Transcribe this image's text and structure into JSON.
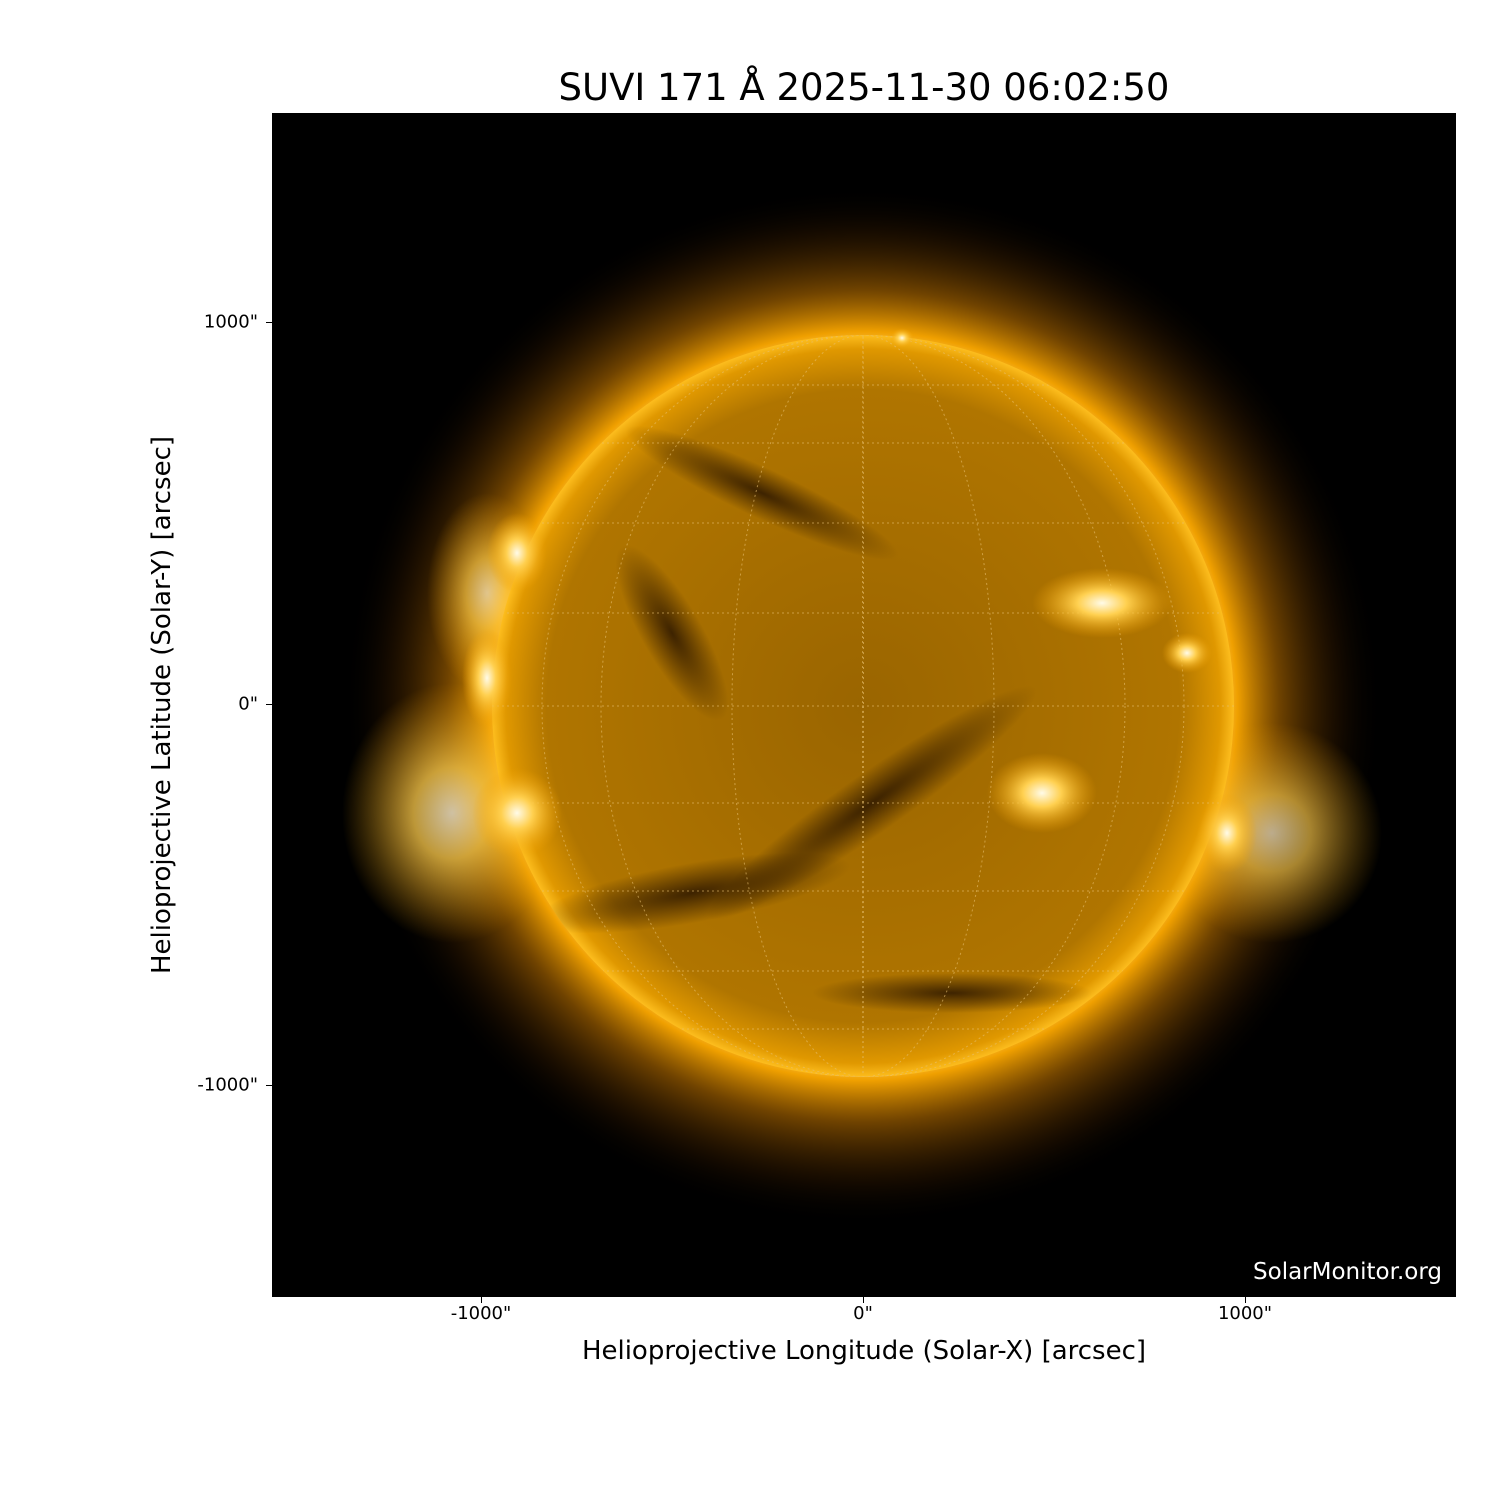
{
  "title": "SUVI 171 Å 2025-11-30 06:02:50",
  "xaxis": {
    "label": "Helioprojective Longitude (Solar-X) [arcsec]",
    "ticks": [
      "-1000\"",
      "0\"",
      "1000\""
    ]
  },
  "yaxis": {
    "label": "Helioprojective Latitude (Solar-Y) [arcsec]",
    "ticks": [
      "1000\"",
      "0\"",
      "-1000\""
    ]
  },
  "watermark": "SolarMonitor.org",
  "colors": {
    "sun": "#f0a800",
    "background": "#000000"
  }
}
